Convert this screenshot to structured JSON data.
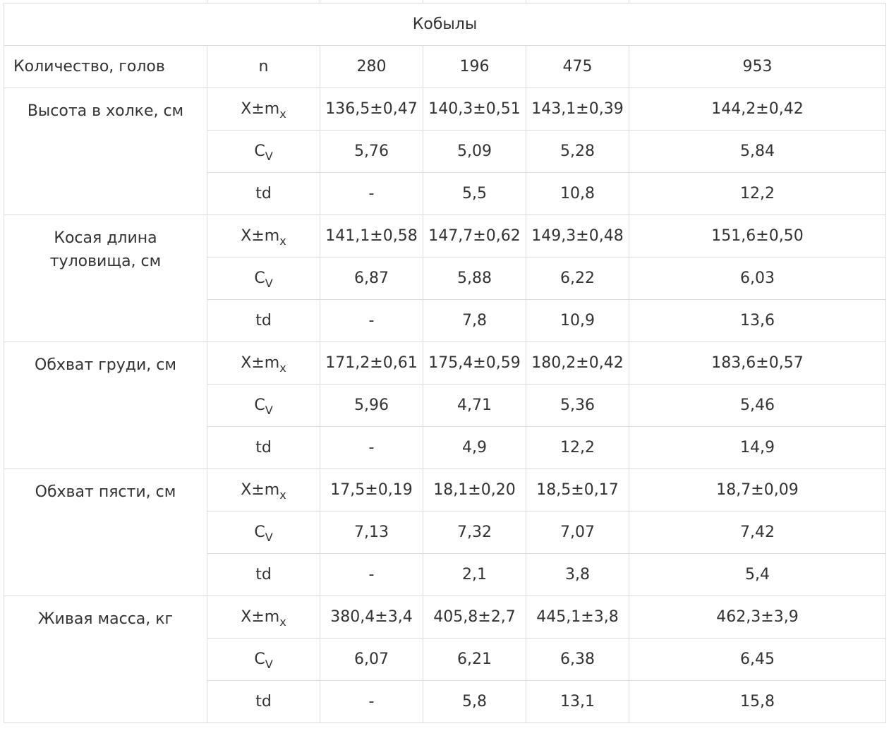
{
  "section_title": "Кобылы",
  "count_row": {
    "label": "Количество, голов",
    "stat": "n",
    "values": [
      "280",
      "196",
      "475",
      "953"
    ]
  },
  "stat_labels": {
    "mean": {
      "base": "X±m",
      "sub": "x"
    },
    "cv": {
      "base": "C",
      "sub": "V"
    },
    "td": {
      "base": "td",
      "sub": ""
    }
  },
  "parameters": [
    {
      "name": "Высота в холке, см",
      "mean": [
        "136,5±0,47",
        "140,3±0,51",
        "143,1±0,39",
        "144,2±0,42"
      ],
      "cv": [
        "5,76",
        "5,09",
        "5,28",
        "5,84"
      ],
      "td": [
        "-",
        "5,5",
        "10,8",
        "12,2"
      ]
    },
    {
      "name": "Косая длина туловища, см",
      "mean": [
        "141,1±0,58",
        "147,7±0,62",
        "149,3±0,48",
        "151,6±0,50"
      ],
      "cv": [
        "6,87",
        "5,88",
        "6,22",
        "6,03"
      ],
      "td": [
        "-",
        "7,8",
        "10,9",
        "13,6"
      ]
    },
    {
      "name": "Обхват груди, см",
      "mean": [
        "171,2±0,61",
        "175,4±0,59",
        "180,2±0,42",
        "183,6±0,57"
      ],
      "cv": [
        "5,96",
        "4,71",
        "5,36",
        "5,46"
      ],
      "td": [
        "-",
        "4,9",
        "12,2",
        "14,9"
      ]
    },
    {
      "name": "Обхват пясти, см",
      "mean": [
        "17,5±0,19",
        "18,1±0,20",
        "18,5±0,17",
        "18,7±0,09"
      ],
      "cv": [
        "7,13",
        "7,32",
        "7,07",
        "7,42"
      ],
      "td": [
        "-",
        "2,1",
        "3,8",
        "5,4"
      ]
    },
    {
      "name": "Живая масса, кг",
      "mean": [
        "380,4±3,4",
        "405,8±2,7",
        "445,1±3,8",
        "462,3±3,9"
      ],
      "cv": [
        "6,07",
        "6,21",
        "6,38",
        "6,45"
      ],
      "td": [
        "-",
        "5,8",
        "13,1",
        "15,8"
      ]
    }
  ]
}
